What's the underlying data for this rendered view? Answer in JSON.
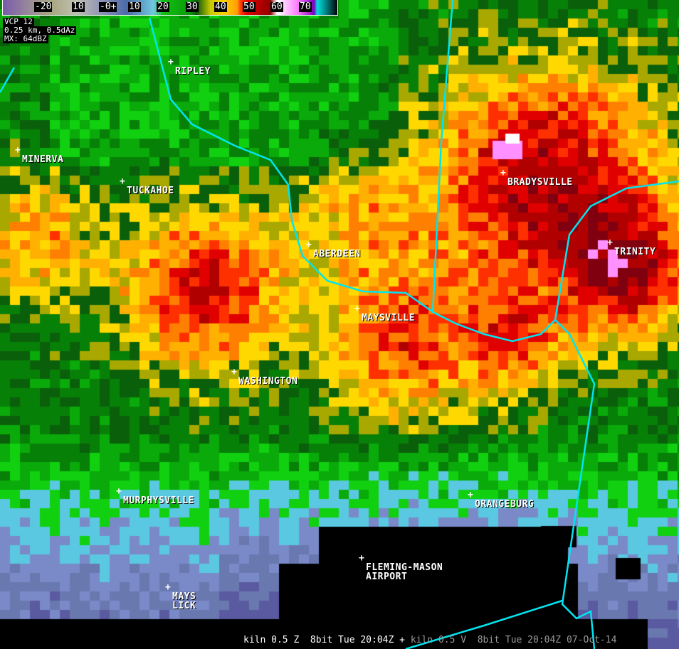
{
  "legend": {
    "labels": [
      "-20",
      "10",
      "-0+",
      "10",
      "20",
      "30",
      "40",
      "50",
      "60",
      "70"
    ],
    "unit": "dBZ"
  },
  "info": {
    "vcp": "VCP  12",
    "resolution": "0.25  km,  0.5dAz",
    "max": "MX:  64dBZ"
  },
  "cities": [
    {
      "name": "RIPLEY"
    },
    {
      "name": "MINERVA"
    },
    {
      "name": "TUCKAHOE"
    },
    {
      "name": "BRADYSVILLE"
    },
    {
      "name": "TRINITY"
    },
    {
      "name": "ABERDEEN"
    },
    {
      "name": "MAYSVILLE"
    },
    {
      "name": "WASHINGTON"
    },
    {
      "name": "MURPHYSVILLE"
    },
    {
      "name": "ORANGEBURG"
    },
    {
      "name": "FLEMING-MASON\nAIRPORT"
    },
    {
      "name": "MAYS\nLICK"
    }
  ],
  "status": {
    "primary": "kiln 0.5 Z  8bit Tue 20:04Z",
    "separator": "+",
    "secondary": "kiln 0.5 V  8bit Tue 20:04Z 07-Oct-14"
  },
  "colors": {
    "boundary": "#00e5f0",
    "label": "#ffffff",
    "no_data": "#000000"
  }
}
